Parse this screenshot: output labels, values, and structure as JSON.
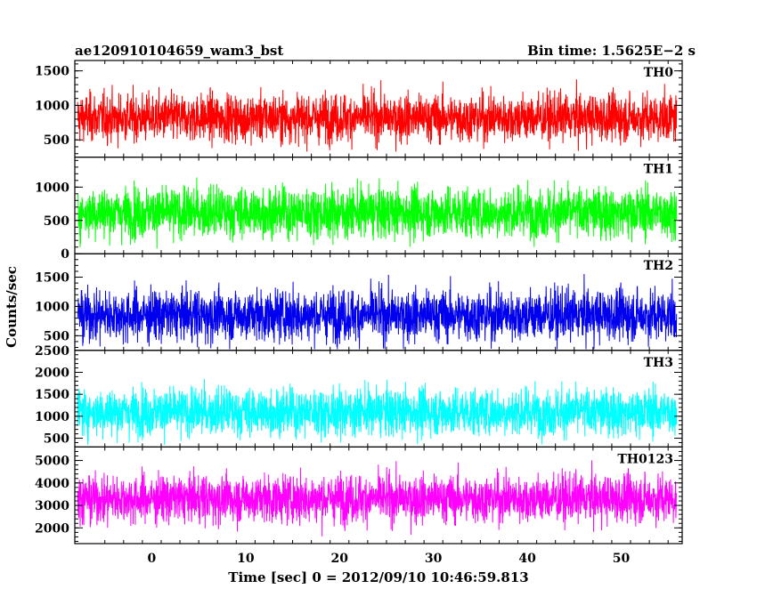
{
  "header": {
    "title": "ae120910104659_wam3_bst",
    "bin_time": "Bin time: 1.5625E−2 s"
  },
  "chart_data": {
    "type": "line",
    "xlabel": "Time [sec] 0 = 2012/09/10 10:46:59.813",
    "ylabel": "Counts/sec",
    "xlim": [
      -8.2,
      56.5
    ],
    "x_ticks": [
      0,
      10,
      20,
      30,
      40,
      50
    ],
    "x_tick_labels": [
      "0",
      "10",
      "20",
      "30",
      "40",
      "50"
    ],
    "data_x_range": [
      -7.9,
      55.9
    ],
    "grid": false,
    "legend": "none",
    "panels": [
      {
        "name": "TH0",
        "color": "#ff0000",
        "ylim": [
          250,
          1650
        ],
        "y_ticks": [
          500,
          1000,
          1500
        ],
        "y_tick_labels": [
          "500",
          "1000",
          "1500"
        ],
        "mean": 820,
        "low_envelope": 330,
        "high_envelope": 1600
      },
      {
        "name": "TH1",
        "color": "#00ff00",
        "ylim": [
          0,
          1450
        ],
        "y_ticks": [
          0,
          500,
          1000
        ],
        "y_tick_labels": [
          "0",
          "500",
          "1000"
        ],
        "mean": 620,
        "low_envelope": 50,
        "high_envelope": 1450
      },
      {
        "name": "TH2",
        "color": "#0000ee",
        "ylim": [
          250,
          1900
        ],
        "y_ticks": [
          500,
          1000,
          1500
        ],
        "y_tick_labels": [
          "500",
          "1000",
          "1500"
        ],
        "mean": 850,
        "low_envelope": 270,
        "high_envelope": 1880
      },
      {
        "name": "TH3",
        "color": "#00ffff",
        "ylim": [
          300,
          2500
        ],
        "y_ticks": [
          500,
          1000,
          1500,
          2000,
          2500
        ],
        "y_tick_labels": [
          "500",
          "1000",
          "1500",
          "2000",
          "2500"
        ],
        "mean": 1100,
        "low_envelope": 350,
        "high_envelope": 2350
      },
      {
        "name": "TH0123",
        "color": "#ff00ff",
        "ylim": [
          1300,
          5600
        ],
        "y_ticks": [
          2000,
          3000,
          4000,
          5000
        ],
        "y_tick_labels": [
          "2000",
          "3000",
          "4000",
          "5000"
        ],
        "mean": 3300,
        "low_envelope": 1500,
        "high_envelope": 5400
      }
    ]
  }
}
